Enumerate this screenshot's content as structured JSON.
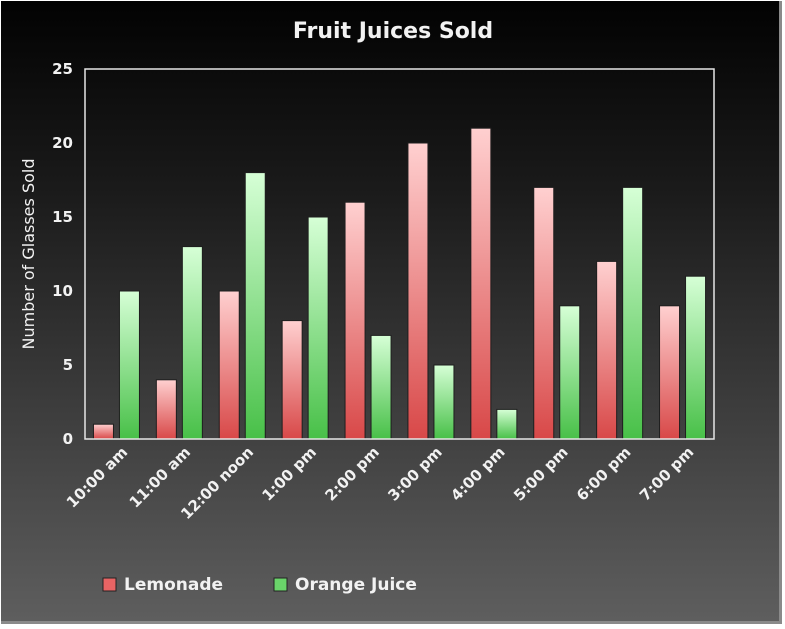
{
  "chart_data": {
    "type": "bar",
    "title": "Fruit Juices Sold",
    "xlabel": "",
    "ylabel": "Number of Glasses Sold",
    "ylim": [
      0,
      25
    ],
    "yticks": [
      0,
      5,
      10,
      15,
      20,
      25
    ],
    "grid": false,
    "legend": "bottom-left",
    "categories": [
      "10:00 am",
      "11:00 am",
      "12:00 noon",
      "1:00 pm",
      "2:00 pm",
      "3:00 pm",
      "4:00 pm",
      "5:00 pm",
      "6:00 pm",
      "7:00 pm"
    ],
    "series": [
      {
        "name": "Lemonade",
        "color": "#e86464",
        "values": [
          1,
          4,
          10,
          8,
          16,
          20,
          21,
          17,
          12,
          9
        ]
      },
      {
        "name": "Orange Juice",
        "color": "#6ad46a",
        "values": [
          10,
          13,
          18,
          15,
          7,
          5,
          2,
          9,
          17,
          11
        ]
      }
    ]
  }
}
